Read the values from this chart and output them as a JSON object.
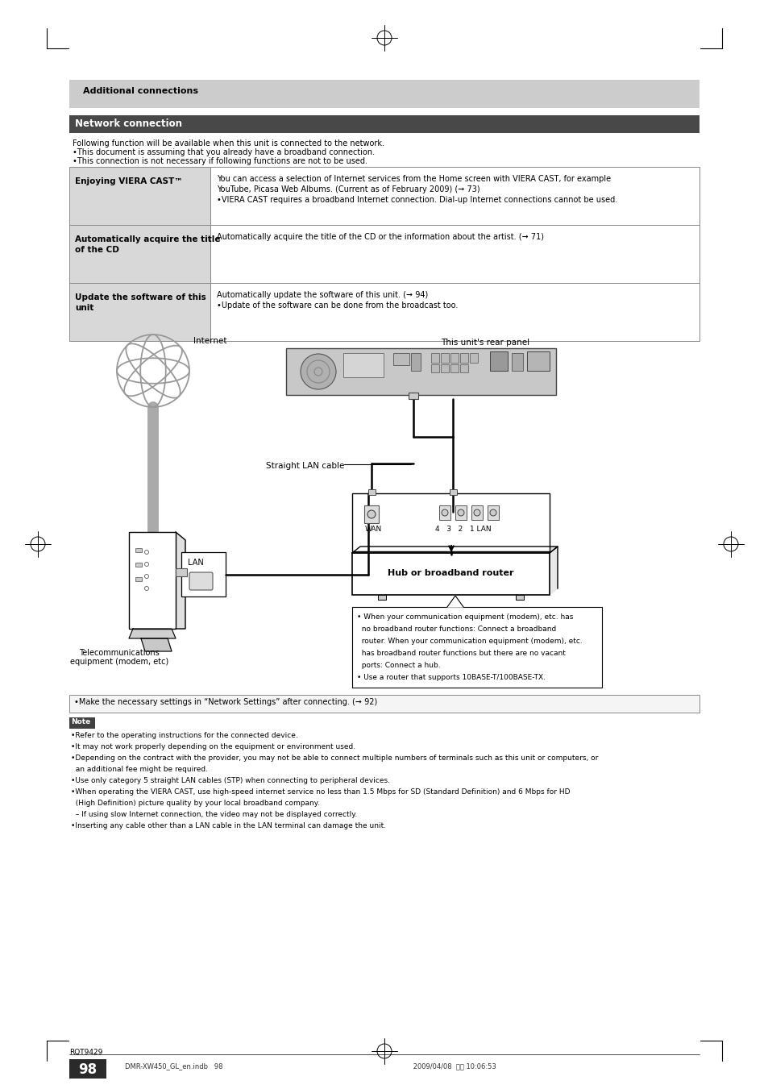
{
  "page_title": "Additional connections",
  "section_title": "Network connection",
  "intro_lines": [
    "Following function will be available when this unit is connected to the network.",
    "•This document is assuming that you already have a broadband connection.",
    "•This connection is not necessary if following functions are not to be used."
  ],
  "table_rows": [
    {
      "left": "Enjoying VIERA CAST™",
      "right_lines": [
        "You can access a selection of Internet services from the Home screen with VIERA CAST, for example",
        "YouTube, Picasa Web Albums. (Current as of February 2009) (➞ 73)",
        "•VIERA CAST requires a broadband Internet connection. Dial-up Internet connections cannot be used."
      ]
    },
    {
      "left": "Automatically acquire the title\nof the CD",
      "right_lines": [
        "Automatically acquire the title of the CD or the information about the artist. (➞ 71)"
      ]
    },
    {
      "left": "Update the software of this\nunit",
      "right_lines": [
        "Automatically update the software of this unit. (➞ 94)",
        "•Update of the software can be done from the broadcast too."
      ]
    }
  ],
  "label_internet": "Internet",
  "label_rear_panel": "This unit's rear panel",
  "label_lan_cable": "Straight LAN cable",
  "label_hub_router": "Hub or broadband router",
  "label_telecom_line1": "Telecommunications",
  "label_telecom_line2": "equipment (modem, etc)",
  "label_lan": "LAN",
  "label_wan": "WAN",
  "label_ports": "4   3   2   1 LAN",
  "diag_note_lines": [
    "• When your communication equipment (modem), etc. has",
    "  no broadband router functions: Connect a broadband",
    "  router. When your communication equipment (modem), etc.",
    "  has broadband router functions but there are no vacant",
    "  ports: Connect a hub.",
    "• Use a router that supports 10BASE-T/100BASE-TX."
  ],
  "note_box_text": "•Make the necessary settings in “Network Settings” after connecting. (➞ 92)",
  "note_header": "Note",
  "note_bullets": [
    "•Refer to the operating instructions for the connected device.",
    "•It may not work properly depending on the equipment or environment used.",
    "•Depending on the contract with the provider, you may not be able to connect multiple numbers of terminals such as this unit or computers, or",
    "  an additional fee might be required.",
    "•Use only category 5 straight LAN cables (STP) when connecting to peripheral devices.",
    "•When operating the VIERA CAST, use high-speed internet service no less than 1.5 Mbps for SD (Standard Definition) and 6 Mbps for HD",
    "  (High Definition) picture quality by your local broadband company.",
    "  – If using slow Internet connection, the video may not be displayed correctly.",
    "•Inserting any cable other than a LAN cable in the LAN terminal can damage the unit."
  ],
  "footer_left": "RQT9429",
  "footer_page": "98",
  "footer_right": "DMR-XW450_GL_en.indb   98                                                                                          2009/04/08  午前 10:06:53",
  "bg_color": "#ffffff",
  "header_bg": "#cccccc",
  "section_bg": "#484848",
  "table_left_bg": "#d8d8d8",
  "table_border": "#888888"
}
